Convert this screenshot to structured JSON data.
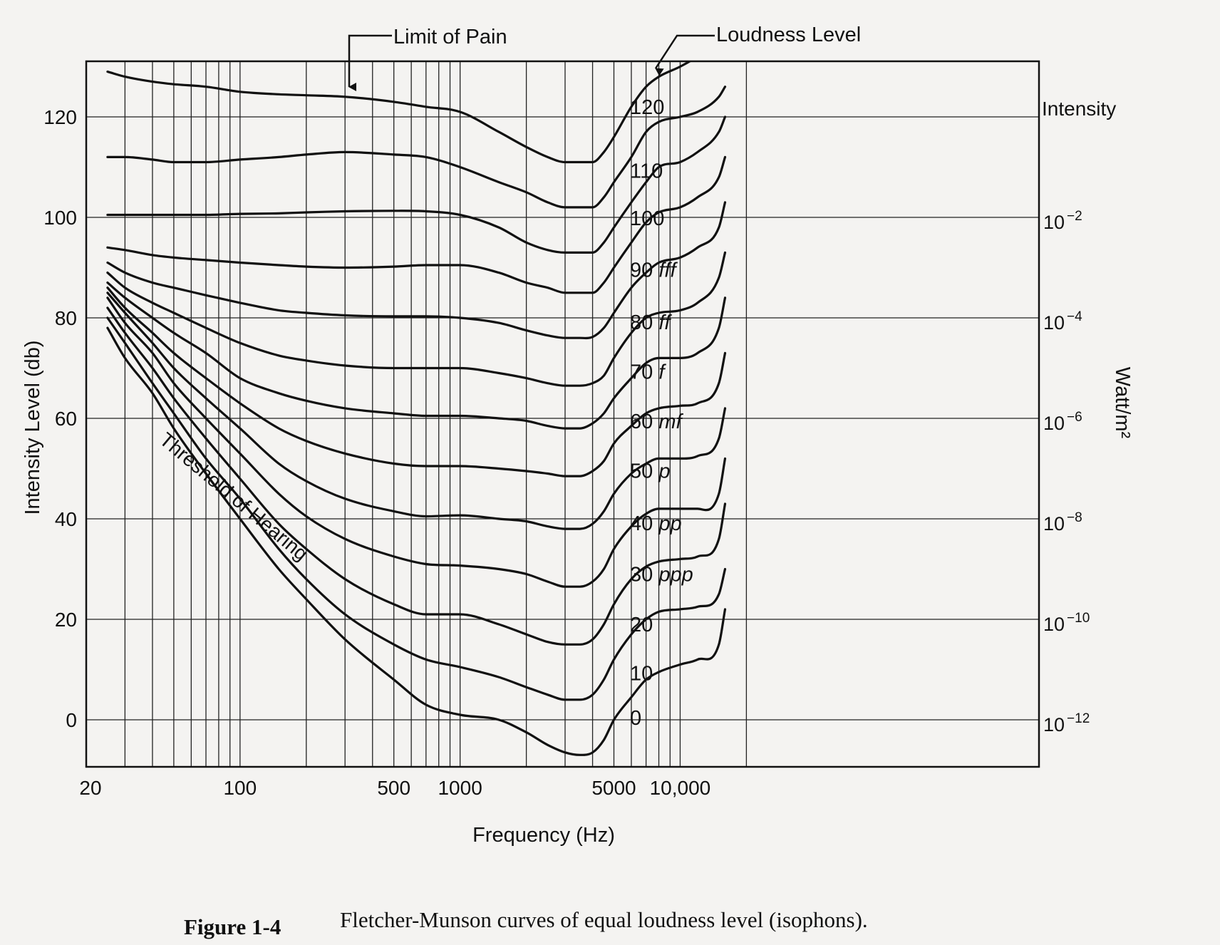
{
  "chart_data": {
    "type": "line",
    "title": "",
    "xlabel": "Frequency (Hz)",
    "ylabel": "Intensity Level (db)",
    "ylabel_right": "Watt/m²",
    "right_axis_title": "Intensity",
    "x_scale": "log",
    "xlim": [
      20,
      20000
    ],
    "ylim": [
      -10,
      130
    ],
    "grid": true,
    "x_ticks": [
      {
        "value": 20,
        "label": "20"
      },
      {
        "value": 100,
        "label": "100"
      },
      {
        "value": 500,
        "label": "500"
      },
      {
        "value": 1000,
        "label": "1000"
      },
      {
        "value": 5000,
        "label": "5000"
      },
      {
        "value": 10000,
        "label": "10,000"
      }
    ],
    "y_ticks": [
      0,
      20,
      40,
      60,
      80,
      100,
      120
    ],
    "right_ticks": [
      {
        "y": 100,
        "base": "10",
        "exp": "−2"
      },
      {
        "y": 80,
        "base": "10",
        "exp": "−4"
      },
      {
        "y": 60,
        "base": "10",
        "exp": "−6"
      },
      {
        "y": 40,
        "base": "10",
        "exp": "−8"
      },
      {
        "y": 20,
        "base": "10",
        "exp": "−10"
      },
      {
        "y": 0,
        "base": "10",
        "exp": "−12"
      }
    ],
    "series": [
      {
        "level": 120,
        "label": "120",
        "dyn": "",
        "x": [
          25,
          30,
          40,
          50,
          70,
          100,
          150,
          200,
          300,
          500,
          700,
          1000,
          1500,
          2000,
          2500,
          3000,
          3500,
          4000,
          4500,
          5000,
          6000,
          7000,
          8000,
          10000,
          12000,
          15000,
          17000
        ],
        "y": [
          129,
          128,
          127,
          126.5,
          126,
          125,
          124.5,
          124.3,
          124,
          123,
          122,
          121,
          117,
          114,
          112,
          111,
          111,
          111,
          113,
          116,
          122,
          126,
          128,
          130,
          132,
          135,
          138
        ]
      },
      {
        "level": 110,
        "label": "110",
        "dyn": "",
        "x": [
          25,
          30,
          40,
          50,
          70,
          100,
          150,
          200,
          300,
          500,
          700,
          1000,
          1500,
          2000,
          2500,
          3000,
          3500,
          4000,
          4500,
          5000,
          6000,
          7000,
          8000,
          10000,
          12000,
          15000,
          16000
        ],
        "y": [
          112,
          112,
          111.5,
          111,
          111,
          111.5,
          112,
          112.5,
          113,
          112.5,
          112,
          110,
          107,
          105,
          103,
          102,
          102,
          102,
          104,
          107,
          112,
          117,
          119,
          120,
          121,
          124,
          126
        ]
      },
      {
        "level": 100,
        "label": "100",
        "dyn": "",
        "x": [
          25,
          30,
          40,
          50,
          70,
          100,
          150,
          200,
          300,
          500,
          700,
          1000,
          1500,
          2000,
          2500,
          3000,
          3500,
          4000,
          4500,
          5000,
          6000,
          7000,
          8000,
          10000,
          12000,
          15000,
          16000
        ],
        "y": [
          100.5,
          100.5,
          100.5,
          100.5,
          100.5,
          100.7,
          100.8,
          101,
          101.2,
          101.3,
          101.2,
          100.5,
          98,
          95,
          93.5,
          93,
          93,
          93,
          95,
          98,
          103,
          107,
          110,
          111,
          113,
          117,
          120
        ]
      },
      {
        "level": 90,
        "label": "90 ",
        "dyn": "fff",
        "x": [
          25,
          30,
          40,
          50,
          70,
          100,
          150,
          200,
          300,
          500,
          700,
          1000,
          1500,
          2000,
          2500,
          3000,
          3500,
          4000,
          4500,
          5000,
          6000,
          7000,
          8000,
          10000,
          12000,
          15000,
          16000
        ],
        "y": [
          94,
          93.5,
          92.5,
          92,
          91.5,
          91,
          90.5,
          90.2,
          90,
          90.2,
          90.5,
          90.5,
          89,
          87,
          86,
          85,
          85,
          85,
          87,
          90,
          95,
          99,
          101,
          102,
          104,
          108,
          112
        ]
      },
      {
        "level": 80,
        "label": "80 ",
        "dyn": "ff",
        "x": [
          25,
          30,
          40,
          50,
          70,
          100,
          150,
          200,
          300,
          500,
          700,
          1000,
          1500,
          2000,
          2500,
          3000,
          3500,
          4000,
          4500,
          5000,
          6000,
          7000,
          8000,
          10000,
          12000,
          15000,
          16000
        ],
        "y": [
          91,
          89,
          87,
          86,
          84.5,
          83,
          81.5,
          81,
          80.5,
          80.3,
          80.3,
          80,
          79,
          77.5,
          76.5,
          76,
          76,
          76.2,
          78,
          81,
          86,
          89,
          91,
          92,
          94,
          98,
          103
        ]
      },
      {
        "level": 70,
        "label": "70 ",
        "dyn": "f",
        "x": [
          25,
          30,
          40,
          50,
          70,
          100,
          150,
          200,
          300,
          500,
          700,
          1000,
          1500,
          2000,
          2500,
          3000,
          3500,
          4000,
          4500,
          5000,
          6000,
          7000,
          8000,
          10000,
          12000,
          15000,
          16000
        ],
        "y": [
          89,
          86,
          83,
          81,
          78,
          75,
          72.5,
          71.5,
          70.5,
          70,
          70,
          70,
          69,
          68,
          67,
          66.5,
          66.5,
          67,
          68.5,
          72,
          77,
          80,
          81,
          81.5,
          83,
          88,
          93
        ]
      },
      {
        "level": 60,
        "label": "60 ",
        "dyn": "mf",
        "x": [
          25,
          30,
          40,
          50,
          70,
          100,
          150,
          200,
          300,
          500,
          700,
          1000,
          1500,
          2000,
          2500,
          3000,
          3500,
          4000,
          4500,
          5000,
          6000,
          7000,
          8000,
          10000,
          12000,
          15000,
          16000
        ],
        "y": [
          87,
          84,
          80,
          77,
          73,
          68,
          65,
          63.5,
          62,
          61,
          60.5,
          60.5,
          60,
          59.5,
          58.5,
          58,
          58,
          59,
          61,
          64,
          68,
          71,
          72,
          72,
          73,
          78,
          84
        ]
      },
      {
        "level": 50,
        "label": "50 ",
        "dyn": "p",
        "x": [
          25,
          30,
          40,
          50,
          70,
          100,
          150,
          200,
          300,
          500,
          700,
          1000,
          1500,
          2000,
          2500,
          3000,
          3500,
          4000,
          4500,
          5000,
          6000,
          7000,
          8000,
          10000,
          12000,
          15000,
          16000
        ],
        "y": [
          86,
          82,
          77,
          73,
          68,
          63,
          58,
          55.5,
          53,
          51,
          50.5,
          50.5,
          50,
          49.5,
          49,
          48.5,
          48.5,
          49.5,
          51.5,
          55,
          58.5,
          61,
          62,
          62.5,
          63,
          67,
          73
        ]
      },
      {
        "level": 40,
        "label": "40 ",
        "dyn": "pp",
        "x": [
          25,
          30,
          40,
          50,
          70,
          100,
          150,
          200,
          300,
          500,
          700,
          1000,
          1500,
          2000,
          2500,
          3000,
          3500,
          4000,
          4500,
          5000,
          6000,
          7000,
          8000,
          10000,
          12000,
          15000,
          16000
        ],
        "y": [
          85,
          81,
          75,
          70,
          64,
          58,
          51,
          47.5,
          44,
          41.5,
          40.5,
          40.7,
          40,
          39.5,
          38.5,
          38,
          38,
          39,
          41.5,
          45,
          49,
          51,
          52,
          52,
          52.5,
          56,
          62
        ]
      },
      {
        "level": 30,
        "label": "30 ",
        "dyn": "ppp",
        "x": [
          25,
          30,
          40,
          50,
          70,
          100,
          150,
          200,
          300,
          500,
          700,
          1000,
          1500,
          2000,
          2500,
          3000,
          3500,
          4000,
          4500,
          5000,
          6000,
          7000,
          8000,
          10000,
          12000,
          15000,
          16000
        ],
        "y": [
          84,
          79,
          73,
          67,
          60,
          53,
          45,
          40.5,
          36,
          32.5,
          31,
          30.7,
          30,
          29,
          27.5,
          26.5,
          26.5,
          27.5,
          30,
          34,
          38.5,
          41,
          42,
          42,
          42,
          45,
          52
        ]
      },
      {
        "level": 20,
        "label": "20",
        "dyn": "",
        "x": [
          25,
          30,
          40,
          50,
          70,
          100,
          150,
          200,
          300,
          500,
          700,
          1000,
          1500,
          2000,
          2500,
          3000,
          3500,
          4000,
          4500,
          5000,
          6000,
          7000,
          8000,
          10000,
          12000,
          15000,
          16000
        ],
        "y": [
          82,
          77,
          70,
          64,
          56,
          48,
          39,
          34,
          28,
          23,
          21,
          21,
          19,
          17,
          15.5,
          15,
          15,
          16,
          19,
          23,
          28,
          30.5,
          31.5,
          32,
          32.5,
          36,
          43
        ]
      },
      {
        "level": 10,
        "label": "10",
        "dyn": "",
        "x": [
          25,
          30,
          40,
          50,
          70,
          100,
          150,
          200,
          300,
          500,
          700,
          1000,
          1500,
          2000,
          2500,
          3000,
          3500,
          4000,
          4500,
          5000,
          6000,
          7000,
          8000,
          10000,
          12000,
          15000,
          16000
        ],
        "y": [
          80,
          75,
          67,
          61,
          52,
          44,
          34,
          28,
          21,
          15,
          12,
          10.5,
          8.5,
          6.5,
          5,
          4,
          4,
          5,
          8,
          12,
          17,
          20,
          21.5,
          22,
          22.5,
          25,
          30
        ]
      },
      {
        "level": 0,
        "label": "0",
        "dyn": "",
        "x": [
          25,
          30,
          40,
          50,
          70,
          100,
          150,
          200,
          300,
          500,
          700,
          1000,
          1500,
          2000,
          2500,
          3000,
          3500,
          4000,
          4500,
          5000,
          6000,
          7000,
          8000,
          10000,
          12000,
          15000,
          16000
        ],
        "y": [
          78,
          72,
          65,
          58,
          49,
          40,
          30,
          24,
          16,
          8,
          3,
          1,
          0,
          -2.5,
          -5,
          -6.5,
          -7,
          -6.5,
          -4,
          0,
          4.5,
          8,
          9.5,
          11,
          12,
          15,
          22
        ]
      }
    ],
    "annotations": {
      "limit_of_pain": "Limit of Pain",
      "loudness_level": "Loudness Level",
      "threshold": "Threshold of Hearing"
    }
  },
  "caption": {
    "figure": "Figure 1-4",
    "text": "Fletcher-Munson curves of equal loudness level (isophons)."
  }
}
